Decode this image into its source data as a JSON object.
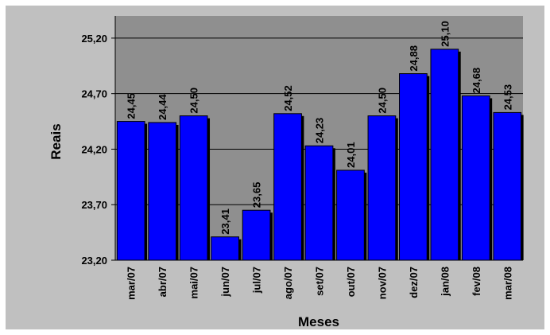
{
  "chart_data": {
    "type": "bar",
    "xlabel": "Meses",
    "ylabel": "Reais",
    "categories": [
      "mar/07",
      "abr/07",
      "mai/07",
      "jun/07",
      "jul/07",
      "ago/07",
      "set/07",
      "out/07",
      "nov/07",
      "dez/07",
      "jan/08",
      "fev/08",
      "mar/08"
    ],
    "values": [
      24.45,
      24.44,
      24.5,
      23.41,
      23.65,
      24.52,
      24.23,
      24.01,
      24.5,
      24.88,
      25.1,
      24.68,
      24.53
    ],
    "data_labels": [
      "24,45",
      "24,44",
      "24,50",
      "23,41",
      "23,65",
      "24,52",
      "24,23",
      "24,01",
      "24,50",
      "24,88",
      "25,10",
      "24,68",
      "24,53"
    ],
    "y_ticks": [
      23.2,
      23.7,
      24.2,
      24.7,
      25.2
    ],
    "y_tick_labels": [
      "23,20",
      "23,70",
      "24,20",
      "24,70",
      "25,20"
    ],
    "ylim": [
      23.2,
      25.4
    ],
    "grid": true,
    "legend": "none",
    "colors": {
      "outer_background": "#c0c0c0",
      "plot_background": "#8f8f8f",
      "bar_fill": "#0000ff",
      "bar_edge": "#000000",
      "gridline": "#000000"
    }
  }
}
